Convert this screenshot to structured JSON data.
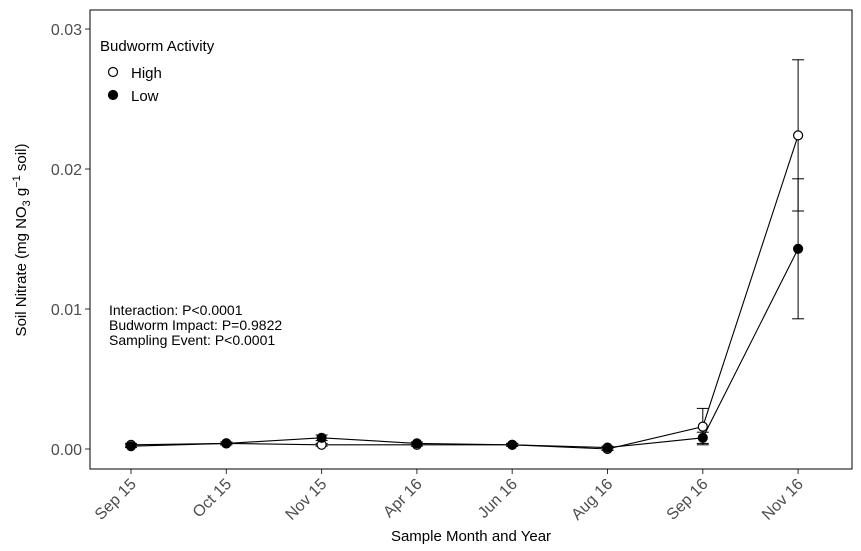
{
  "chart_data": {
    "type": "line",
    "categories": [
      "Sep 15",
      "Oct 15",
      "Nov 15",
      "Apr 16",
      "Jun 16",
      "Aug 16",
      "Sep 16",
      "Nov 16"
    ],
    "xlabel": "Sample Month and Year",
    "ylabel": {
      "part1": "Soil Nitrate (mg NO",
      "sub": "3",
      "part2": " g",
      "sup": "−1",
      "part3": " soil)"
    },
    "ylim": [
      -0.0015,
      0.0302
    ],
    "yticks": [
      0.0,
      0.01,
      0.02,
      0.03
    ],
    "ytick_labels": [
      "0.00",
      "0.01",
      "0.02",
      "0.03"
    ],
    "grid": false,
    "legend": {
      "title": "Budworm Activity",
      "placement": "top-left",
      "entries": [
        "High",
        "Low"
      ]
    },
    "series": [
      {
        "name": "High",
        "marker": "open-circle",
        "values": [
          0.0003,
          0.0004,
          0.0003,
          0.0003,
          0.0003,
          0.0,
          0.0016,
          0.0224
        ],
        "errors": [
          0.0001,
          0.0001,
          0.0001,
          0.0001,
          0.0001,
          0.0001,
          0.0013,
          0.0054
        ]
      },
      {
        "name": "Low",
        "marker": "filled-circle",
        "values": [
          0.0002,
          0.0004,
          0.0008,
          0.0004,
          0.0003,
          0.0001,
          0.0008,
          0.0143
        ],
        "errors": [
          0.0001,
          0.0001,
          0.0002,
          0.0001,
          0.0001,
          0.0001,
          0.0004,
          0.005
        ]
      }
    ],
    "annotations": [
      "Interaction: P<0.0001",
      "Budworm Impact: P=0.9822",
      "Sampling Event: P<0.0001"
    ],
    "colors": {
      "line": "#000000",
      "panel_border": "#000000",
      "tick_text": "#4d4d4d"
    }
  }
}
